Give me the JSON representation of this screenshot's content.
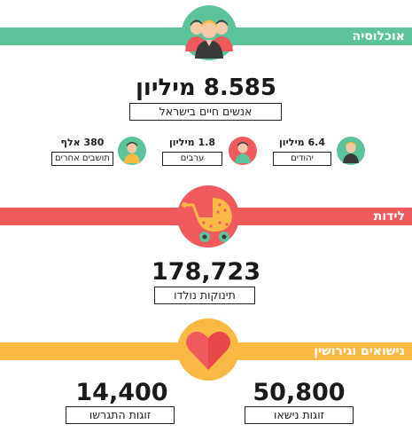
{
  "population": {
    "section_title": "אוכלוסיה",
    "total": "8.585 מיליון",
    "total_caption": "אנשים חיים בישראל",
    "groups": [
      {
        "value": "6.4 מיליון",
        "label": "יהודים"
      },
      {
        "value": "1.8 מיליון",
        "label": "ערבים"
      },
      {
        "value": "380 אלף",
        "label": "תושבים אחרים"
      }
    ]
  },
  "births": {
    "section_title": "לידות",
    "total": "178,723",
    "caption": "תינוקות נולדו"
  },
  "marriage": {
    "section_title": "נישואים וגירושין",
    "married_value": "50,800",
    "married_caption": "זוגות נישאו",
    "divorced_value": "14,400",
    "divorced_caption": "זוגות התגרשו"
  },
  "colors": {
    "green": "#5cc39b",
    "red": "#f05a5d",
    "yellow": "#f9b944"
  }
}
